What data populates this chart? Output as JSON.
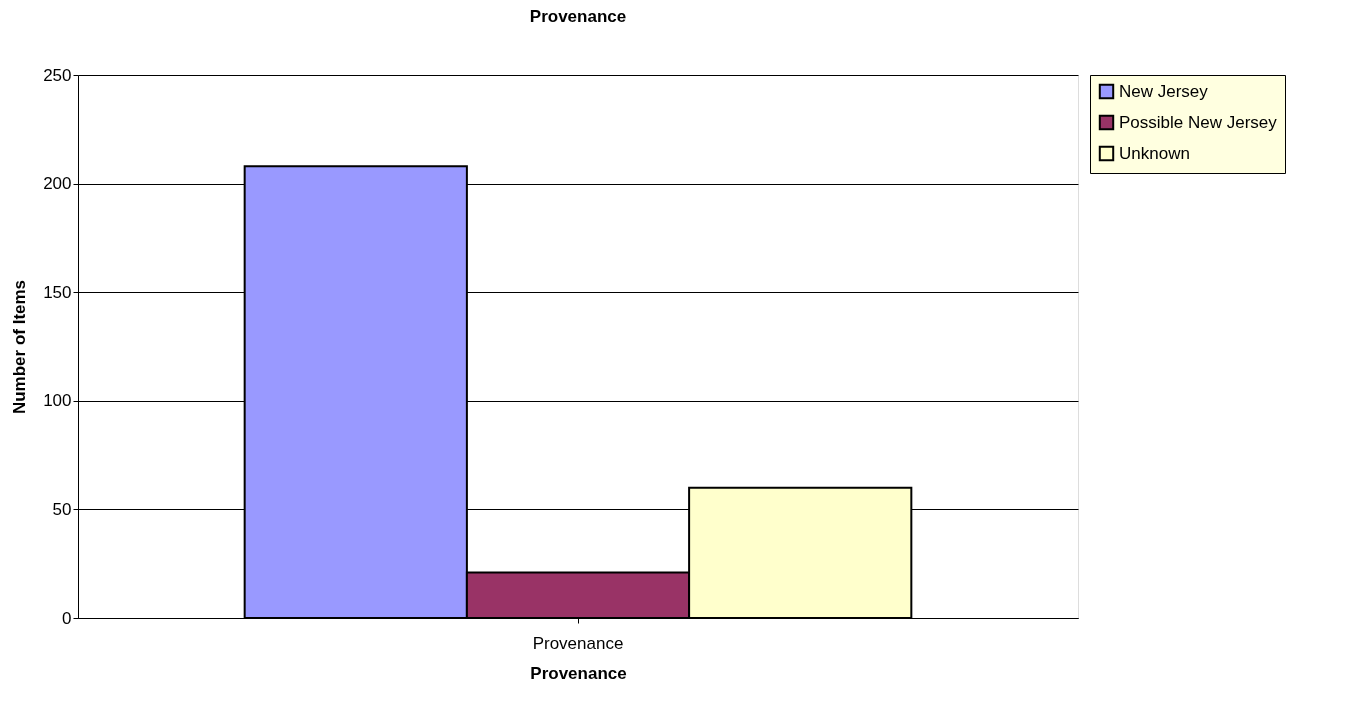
{
  "chart_data": {
    "type": "bar",
    "title": "Provenance",
    "xlabel": "Provenance",
    "ylabel": "Number of Items",
    "categories": [
      "Provenance"
    ],
    "series": [
      {
        "name": "New Jersey",
        "color": "#9999ff",
        "values": [
          208
        ]
      },
      {
        "name": "Possible New Jersey",
        "color": "#993366",
        "values": [
          21
        ]
      },
      {
        "name": "Unknown",
        "color": "#ffffcc",
        "values": [
          60
        ]
      }
    ],
    "ylim": [
      0,
      250
    ],
    "yticks": [
      0,
      50,
      100,
      150,
      200,
      250
    ],
    "grid": "y",
    "legend": "right"
  }
}
